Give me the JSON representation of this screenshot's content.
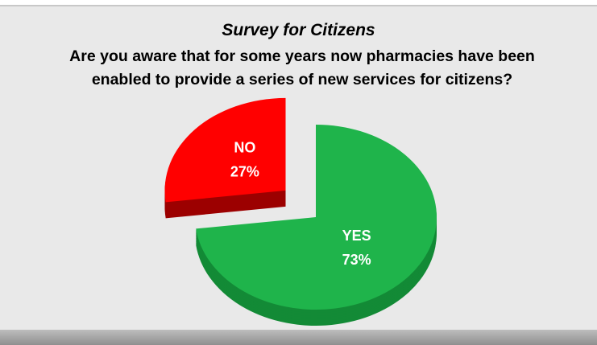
{
  "chart_data": {
    "type": "pie",
    "title": "Survey for Citizens",
    "subtitle": "Are you aware that for some years now pharmacies have been enabled to provide a series of new services for citizens?",
    "categories": [
      "YES",
      "NO"
    ],
    "values": [
      73,
      27
    ],
    "value_labels": [
      "73%",
      "27%"
    ],
    "colors": [
      "#1fb44b",
      "#ff0000"
    ],
    "side_colors": [
      "#138a36",
      "#9c0000"
    ],
    "explode": [
      false,
      true
    ]
  }
}
